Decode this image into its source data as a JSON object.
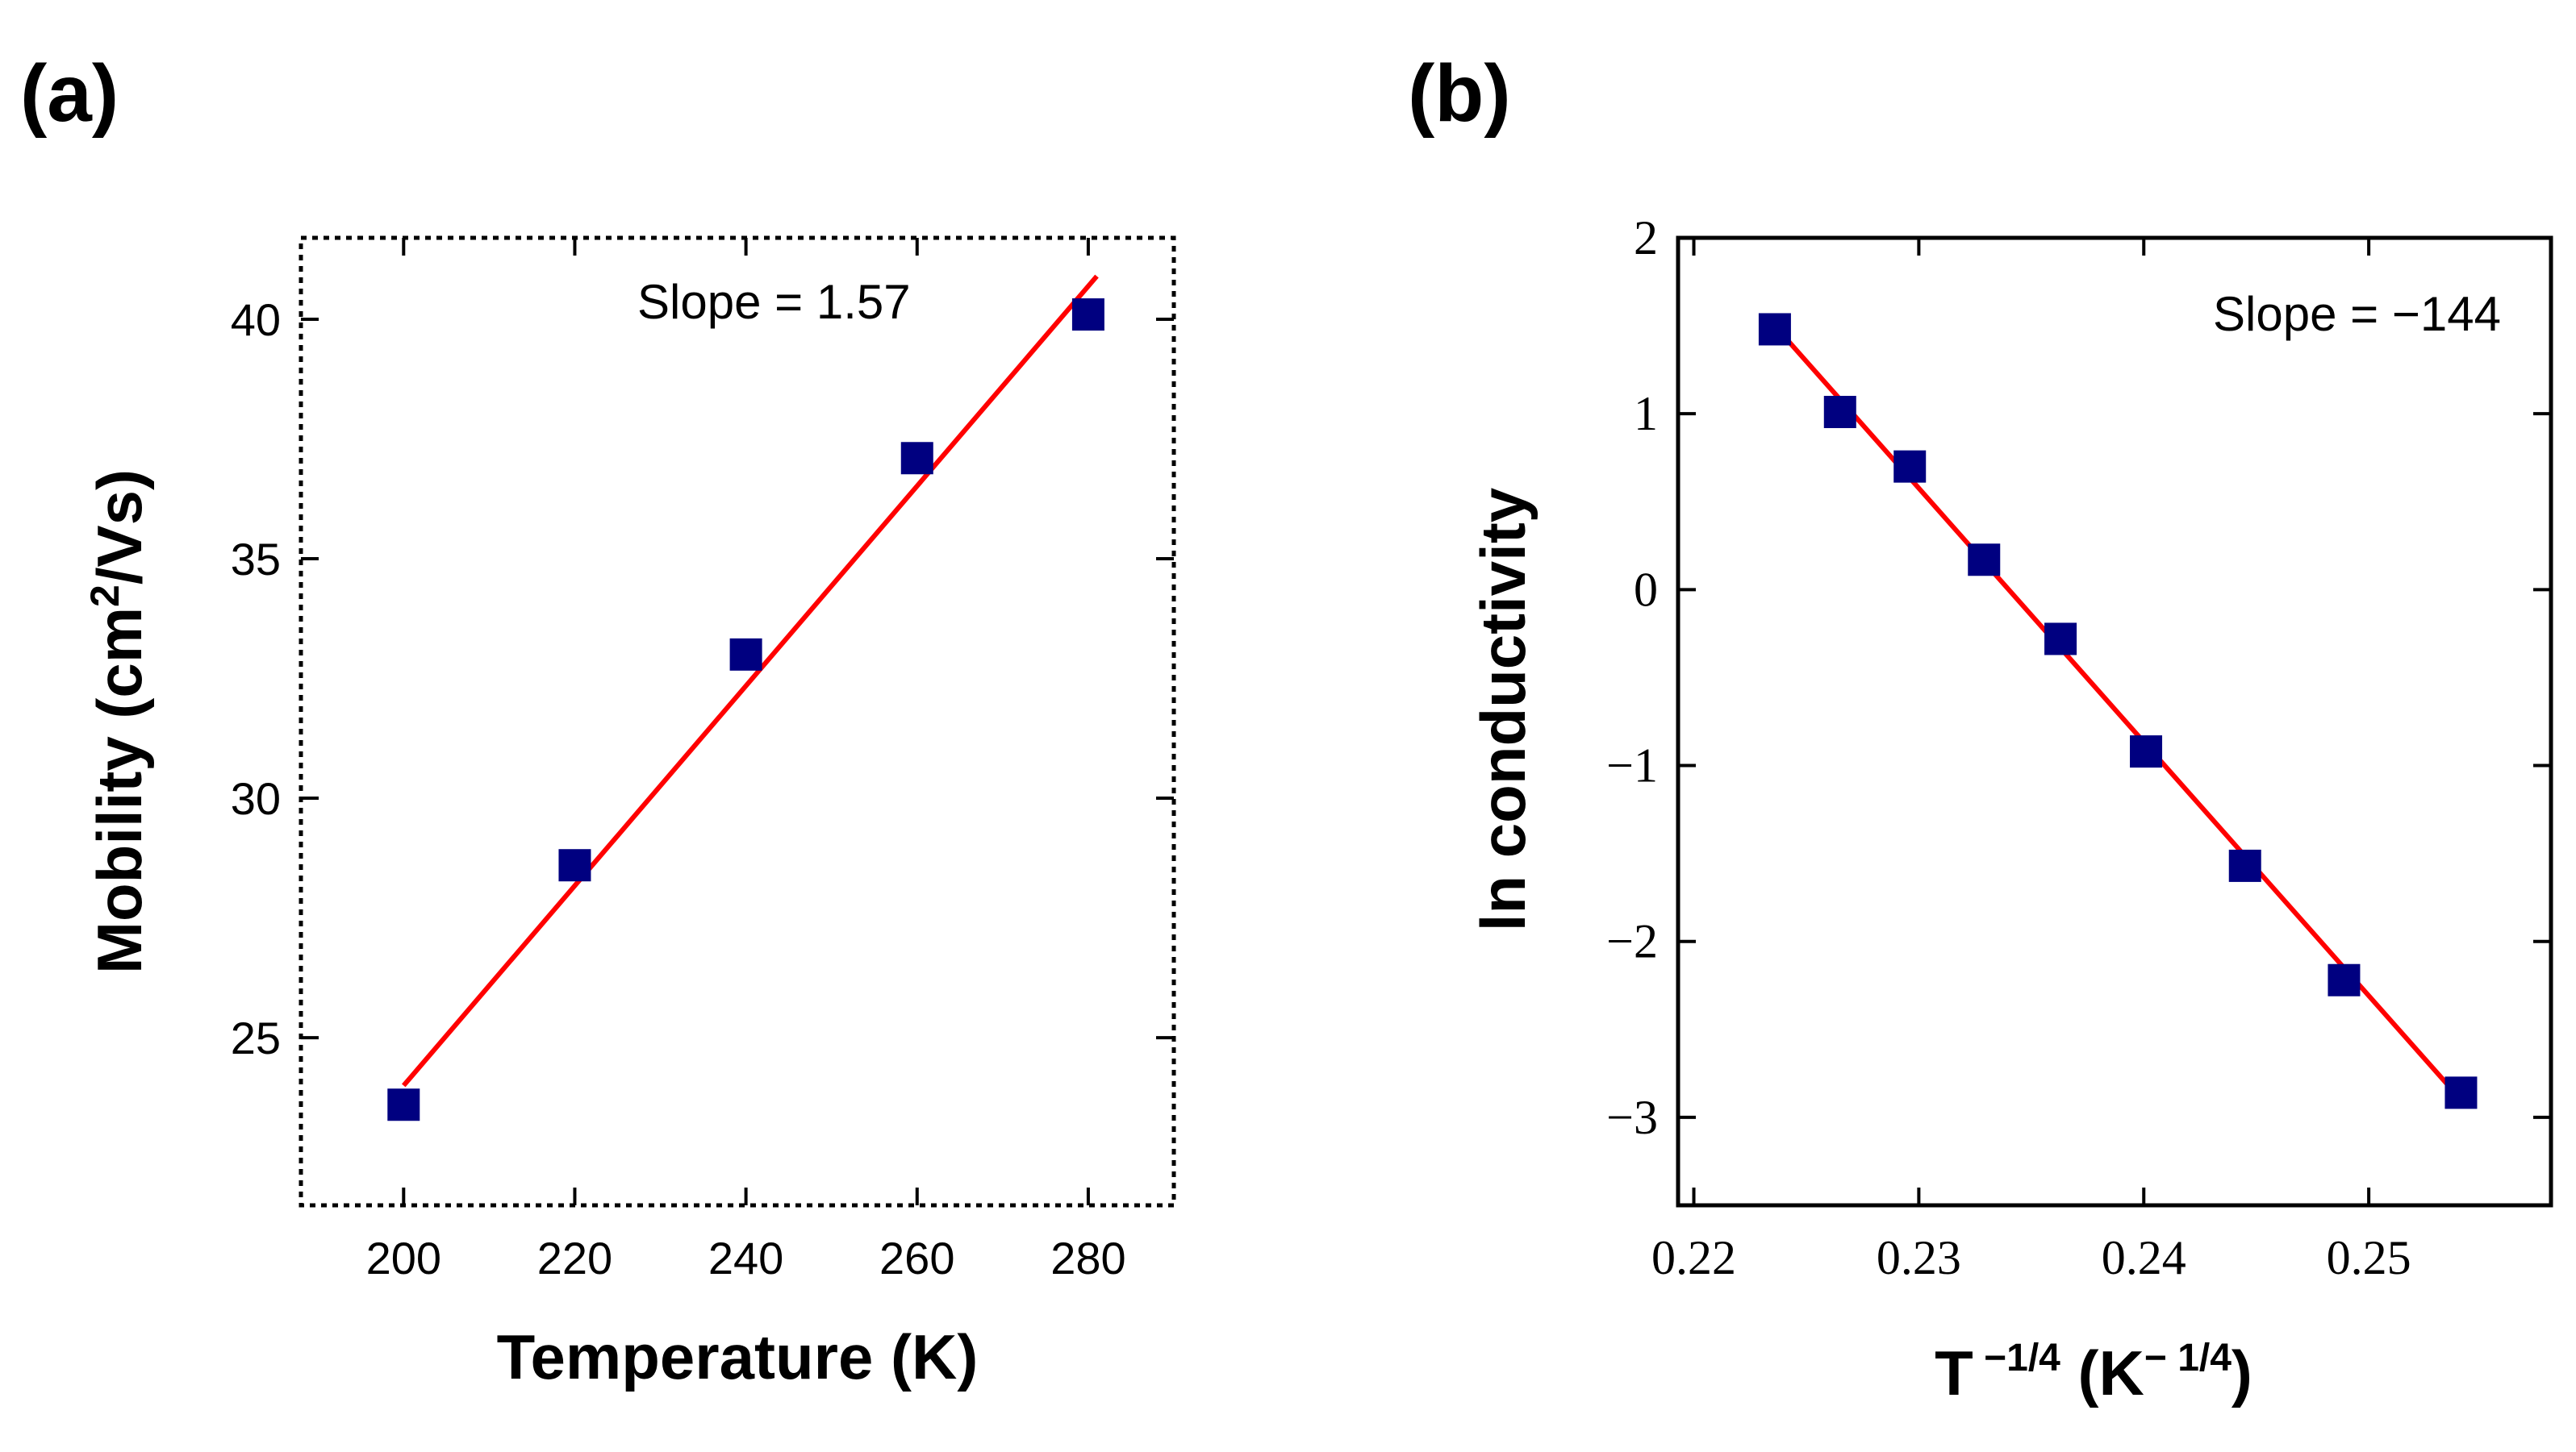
{
  "chart_data": [
    {
      "type": "scatter",
      "panel_label": "(a)",
      "xlabel": "Temperature (K)",
      "ylabel_main": "Mobility (cm",
      "ylabel_sup": "2",
      "ylabel_end": "/Vs)",
      "xlim": [
        188,
        290
      ],
      "ylim": [
        21.5,
        41.7
      ],
      "xticks": [
        200,
        220,
        240,
        260,
        280
      ],
      "xtick_labels": [
        "200",
        "220",
        "240",
        "260",
        "280"
      ],
      "yticks": [
        25,
        30,
        35,
        40
      ],
      "ytick_labels": [
        "25",
        "30",
        "35",
        "40"
      ],
      "points": {
        "x": [
          200,
          220,
          240,
          260,
          280
        ],
        "y": [
          23.6,
          28.6,
          33.0,
          37.1,
          40.1
        ]
      },
      "fit_line": {
        "x": [
          200,
          281
        ],
        "y": [
          24.0,
          40.9
        ]
      },
      "annotation": "Slope = 1.57",
      "marker_color": "#000080",
      "line_color": "#ff0000",
      "frame_style": "dotted"
    },
    {
      "type": "scatter",
      "panel_label": "(b)",
      "xlabel_T": "T",
      "xlabel_sup1": " −1/4",
      "xlabel_mid": " (K",
      "xlabel_sup2": "− 1/4",
      "xlabel_end": ")",
      "ylabel": "ln conductivity",
      "xlim": [
        0.2193,
        0.2581
      ],
      "ylim": [
        -3.5,
        2.0
      ],
      "xticks": [
        0.22,
        0.23,
        0.24,
        0.25
      ],
      "xtick_labels": [
        "0.22",
        "0.23",
        "0.24",
        "0.25"
      ],
      "yticks": [
        2,
        1,
        0,
        -1,
        -2,
        -3
      ],
      "ytick_labels": [
        "2",
        "1",
        "0",
        "−1",
        "−2",
        "−3"
      ],
      "points": {
        "x": [
          0.2236,
          0.2265,
          0.2296,
          0.2329,
          0.2363,
          0.2401,
          0.2445,
          0.2489,
          0.2541
        ],
        "y": [
          1.48,
          1.01,
          0.7,
          0.17,
          -0.28,
          -0.92,
          -1.57,
          -2.22,
          -2.86
        ]
      },
      "fit_line": {
        "x": [
          0.2236,
          0.2541
        ],
        "y": [
          1.5,
          -2.9
        ]
      },
      "annotation": "Slope = −144",
      "marker_color": "#000080",
      "line_color": "#ff0000",
      "frame_style": "solid"
    }
  ]
}
